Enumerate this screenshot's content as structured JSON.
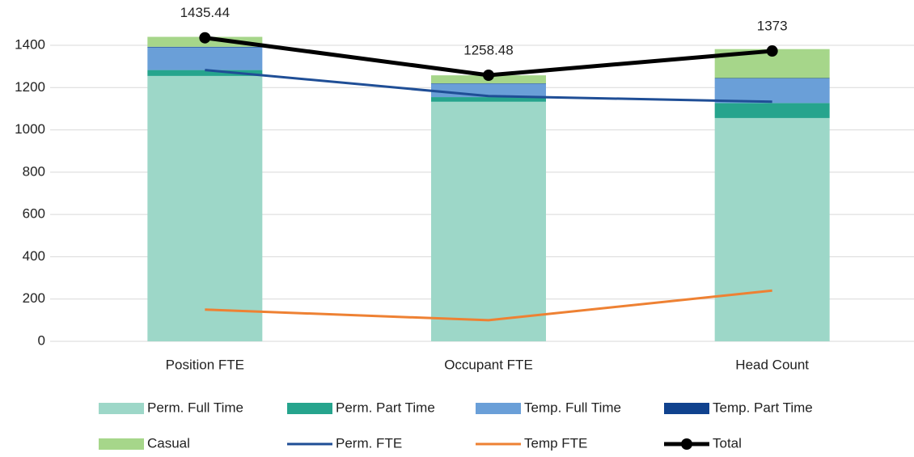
{
  "chart_data": {
    "type": "combo",
    "categories": [
      "Position FTE",
      "Occupant FTE",
      "Head Count"
    ],
    "ylim": [
      0,
      1500
    ],
    "yticks": [
      0,
      200,
      400,
      600,
      800,
      1000,
      1200,
      1400
    ],
    "grid": true,
    "legend": "bottom",
    "series": [
      {
        "name": "Perm. Full Time",
        "type": "bar",
        "color": "#9dd7c8",
        "values": [
          1255,
          1133,
          1056
        ]
      },
      {
        "name": "Perm. Part Time",
        "type": "bar",
        "color": "#26a48d",
        "values": [
          28,
          22,
          71
        ]
      },
      {
        "name": "Temp.  Full Time",
        "type": "bar",
        "color": "#6a9fd8",
        "values": [
          107,
          63,
          116
        ]
      },
      {
        "name": "Temp.  Part Time",
        "type": "bar",
        "color": "#10428e",
        "values": [
          3,
          2,
          2
        ]
      },
      {
        "name": "Casual",
        "type": "bar",
        "color": "#a6d68a",
        "values": [
          47,
          38,
          137
        ]
      },
      {
        "name": "Perm. FTE",
        "type": "line",
        "color": "#1f4e96",
        "values": [
          1283,
          1160,
          1133
        ]
      },
      {
        "name": "Temp FTE",
        "type": "line",
        "color": "#ee8133",
        "values": [
          150,
          100,
          240
        ]
      },
      {
        "name": "Total",
        "type": "line",
        "color": "#000000",
        "markers": true,
        "data_labels": true,
        "values": [
          1435.44,
          1258.48,
          1373
        ]
      }
    ]
  }
}
